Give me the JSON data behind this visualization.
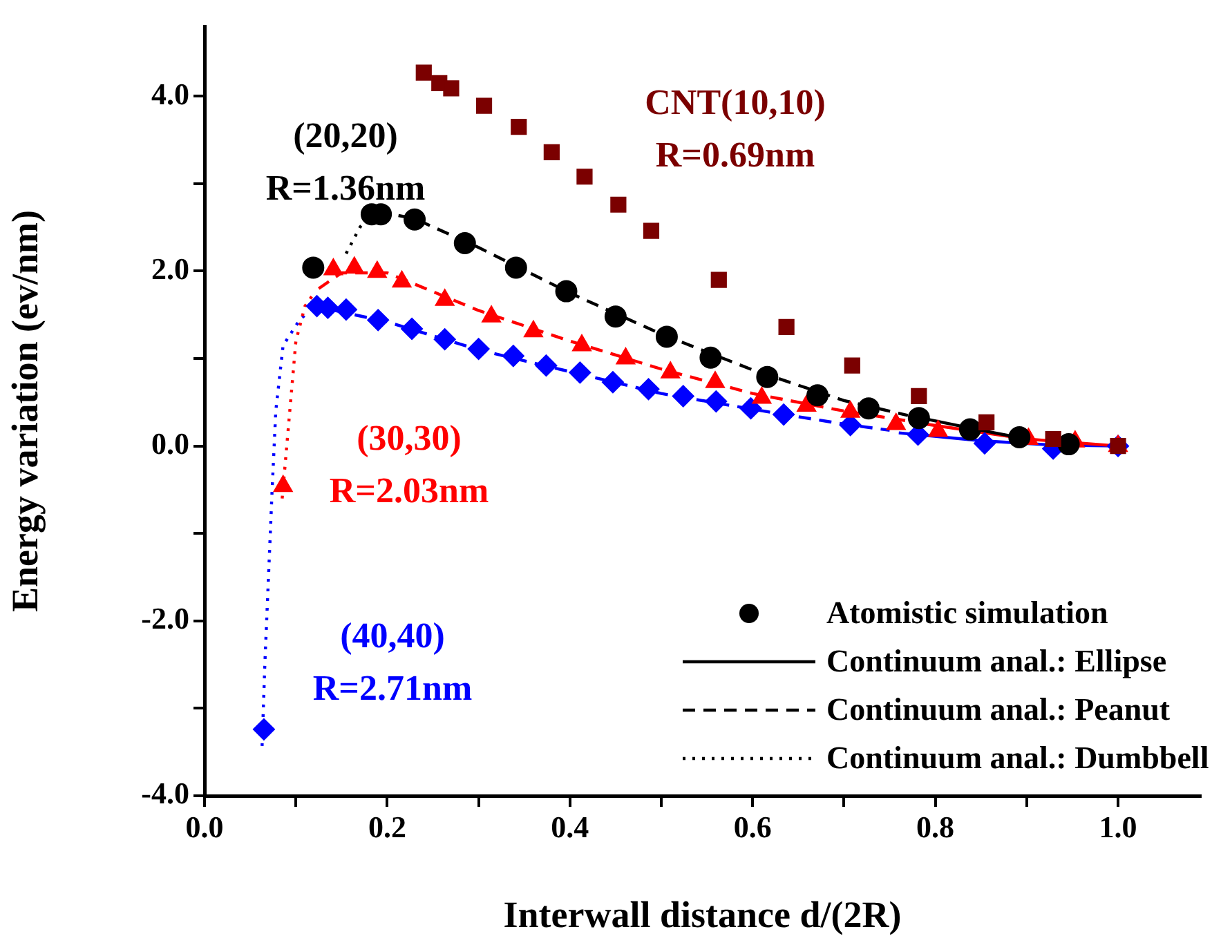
{
  "chart_data": {
    "type": "scatter",
    "xlabel": "Interwall distance d/(2R)",
    "ylabel": "Energy variation (ev/nm)",
    "xlim": [
      0,
      1.09
    ],
    "ylim": [
      -4,
      4.8
    ],
    "xticks": [
      {
        "value": 0,
        "label": "0.0"
      },
      {
        "value": 0.1,
        "label": null
      },
      {
        "value": 0.2,
        "label": "0.2"
      },
      {
        "value": 0.3,
        "label": null
      },
      {
        "value": 0.4,
        "label": "0.4"
      },
      {
        "value": 0.5,
        "label": null
      },
      {
        "value": 0.6,
        "label": "0.6"
      },
      {
        "value": 0.7,
        "label": null
      },
      {
        "value": 0.8,
        "label": "0.8"
      },
      {
        "value": 0.9,
        "label": null
      },
      {
        "value": 1,
        "label": "1.0"
      }
    ],
    "yticks": [
      {
        "value": -4,
        "label": "-4.0"
      },
      {
        "value": -3,
        "label": null
      },
      {
        "value": -2,
        "label": "-2.0"
      },
      {
        "value": -1,
        "label": null
      },
      {
        "value": 0,
        "label": "0.0"
      },
      {
        "value": 1,
        "label": null
      },
      {
        "value": 2,
        "label": "2.0"
      },
      {
        "value": 3,
        "label": null
      },
      {
        "value": 4,
        "label": "4.0"
      }
    ],
    "grid": false,
    "legend": "bottom right",
    "annotations": [
      "CNT(10,10)\nR=0.69nm",
      "(20,20)\nR=1.36nm",
      "(30,30)\nR=2.03nm",
      "(40,40)\nR=2.71nm"
    ],
    "series": [
      {
        "type": "scatter",
        "marker": "square",
        "color": "#7b0000",
        "x": [
          0.24,
          0.257,
          0.27,
          0.306,
          0.344,
          0.38,
          0.416,
          0.453,
          0.489,
          0.563,
          0.637,
          0.709,
          0.782,
          0.856,
          0.929,
          1.0
        ],
        "values": [
          4.27,
          4.15,
          4.09,
          3.89,
          3.65,
          3.36,
          3.08,
          2.76,
          2.46,
          1.9,
          1.36,
          0.92,
          0.57,
          0.27,
          0.08,
          0.0
        ]
      },
      {
        "type": "scatter",
        "marker": "circle",
        "color": "#000000",
        "name": "Atomistic simulation",
        "x": [
          0.119,
          0.183,
          0.193,
          0.23,
          0.285,
          0.341,
          0.396,
          0.45,
          0.506,
          0.554,
          0.616,
          0.671,
          0.727,
          0.782,
          0.838,
          0.892,
          0.946
        ],
        "values": [
          2.04,
          2.65,
          2.65,
          2.59,
          2.32,
          2.04,
          1.77,
          1.48,
          1.25,
          1.01,
          0.79,
          0.58,
          0.43,
          0.32,
          0.19,
          0.1,
          0.02
        ]
      },
      {
        "type": "scatter",
        "marker": "triangle",
        "color": "#ff0000",
        "x": [
          0.086,
          0.141,
          0.164,
          0.189,
          0.216,
          0.263,
          0.314,
          0.36,
          0.413,
          0.461,
          0.51,
          0.559,
          0.61,
          0.659,
          0.707,
          0.757,
          0.803,
          0.902,
          0.953,
          1.0
        ],
        "values": [
          -0.46,
          2.02,
          2.04,
          1.99,
          1.88,
          1.67,
          1.48,
          1.31,
          1.15,
          1.0,
          0.84,
          0.73,
          0.55,
          0.46,
          0.39,
          0.25,
          0.17,
          0.08,
          0.05,
          0.0
        ]
      },
      {
        "type": "scatter",
        "marker": "diamond",
        "color": "#0000ff",
        "x": [
          0.065,
          0.123,
          0.135,
          0.155,
          0.19,
          0.227,
          0.263,
          0.3,
          0.338,
          0.374,
          0.411,
          0.447,
          0.486,
          0.524,
          0.56,
          0.598,
          0.634,
          0.707,
          0.781,
          0.854,
          0.929,
          1.0
        ],
        "values": [
          -3.24,
          1.6,
          1.58,
          1.56,
          1.44,
          1.34,
          1.22,
          1.11,
          1.03,
          0.92,
          0.84,
          0.73,
          0.65,
          0.57,
          0.51,
          0.43,
          0.36,
          0.24,
          0.13,
          0.03,
          -0.03,
          0.0
        ]
      },
      {
        "type": "line",
        "line_style": "solid",
        "color": "#000000",
        "name": "Continuum anal.: Ellipse",
        "x": [
          0.78,
          0.85,
          0.9
        ],
        "values": [
          0.33,
          0.18,
          0.08
        ]
      },
      {
        "type": "line",
        "line_style": "dashed",
        "color": "#000000",
        "name": "Continuum anal.: Peanut",
        "x": [
          0.19,
          0.23,
          0.3,
          0.4,
          0.5,
          0.6,
          0.7,
          0.77
        ],
        "values": [
          2.68,
          2.6,
          2.27,
          1.75,
          1.28,
          0.87,
          0.52,
          0.35
        ]
      },
      {
        "type": "line",
        "line_style": "dotted",
        "color": "#000000",
        "name": "Continuum anal.: Dumbbell",
        "x": [
          0.155,
          0.17,
          0.183
        ],
        "values": [
          2.2,
          2.5,
          2.66
        ]
      },
      {
        "type": "line",
        "line_style": "dashed",
        "color": "#ff0000",
        "x": [
          0.125,
          0.15,
          0.2,
          0.3,
          0.4,
          0.5,
          0.6,
          0.7,
          0.78
        ],
        "values": [
          1.8,
          1.98,
          1.98,
          1.55,
          1.2,
          0.88,
          0.6,
          0.4,
          0.27
        ]
      },
      {
        "type": "line",
        "line_style": "solid",
        "color": "#ff0000",
        "x": [
          0.79,
          0.9,
          1.0
        ],
        "values": [
          0.25,
          0.08,
          0.0
        ]
      },
      {
        "type": "line",
        "line_style": "dotted",
        "color": "#ff0000",
        "x": [
          0.085,
          0.09,
          0.1,
          0.11,
          0.118
        ],
        "values": [
          -0.6,
          0.0,
          1.2,
          1.6,
          1.72
        ]
      },
      {
        "type": "line",
        "line_style": "dashed",
        "color": "#0000ff",
        "x": [
          0.12,
          0.2,
          0.3,
          0.4,
          0.5,
          0.6,
          0.7,
          0.75
        ],
        "values": [
          1.6,
          1.42,
          1.1,
          0.85,
          0.6,
          0.42,
          0.25,
          0.18
        ]
      },
      {
        "type": "line",
        "line_style": "solid",
        "color": "#0000ff",
        "x": [
          0.76,
          0.85,
          0.93,
          1.0
        ],
        "values": [
          0.15,
          0.06,
          0.01,
          0.0
        ]
      },
      {
        "type": "line",
        "line_style": "dotted",
        "color": "#0000ff",
        "x": [
          0.063,
          0.066,
          0.07,
          0.074,
          0.078,
          0.086,
          0.104,
          0.113
        ],
        "values": [
          -3.43,
          -2.5,
          -1.5,
          -0.5,
          0.4,
          1.15,
          1.44,
          1.53
        ]
      }
    ]
  }
}
